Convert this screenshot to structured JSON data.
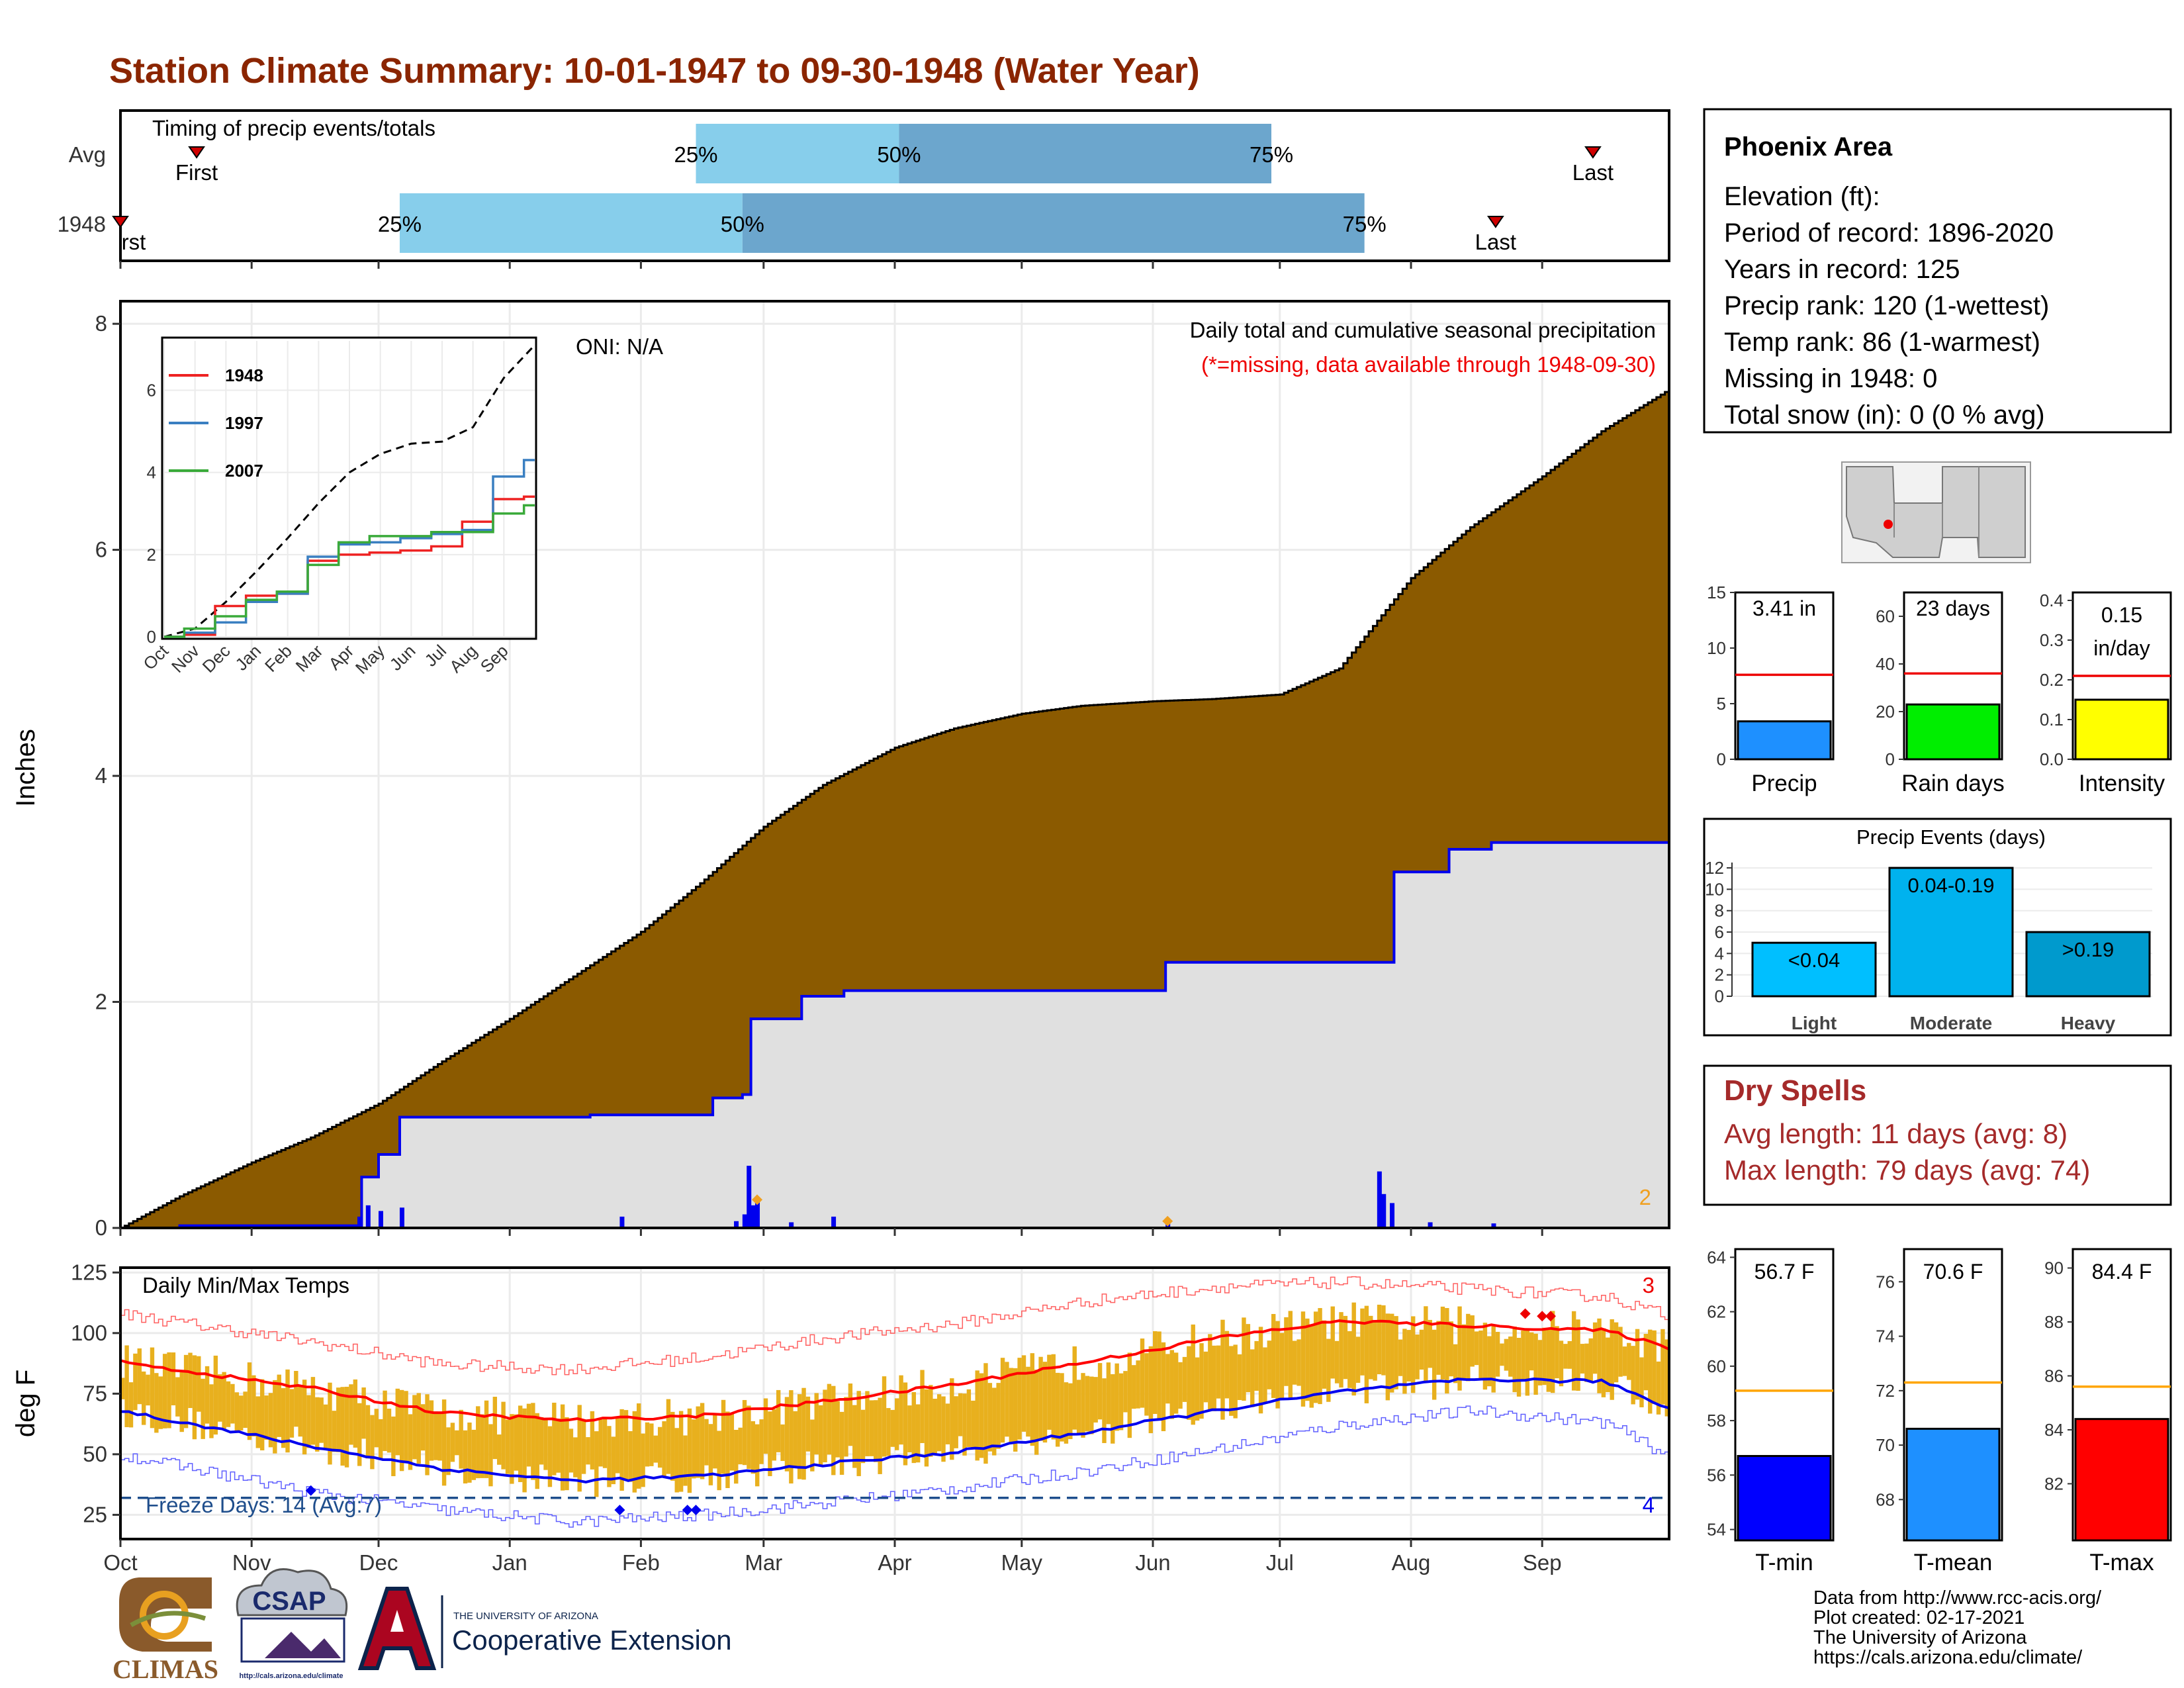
{
  "title": "Station Climate Summary: 10-01-1947 to 09-30-1948 (Water Year)",
  "colors": {
    "title": "#8b2500",
    "cum_fill": "#8b5a00",
    "avg_fill": "#e0e0e0",
    "blue_line": "#0000ee",
    "precip_bar": "#1e90ff",
    "rain_bar": "#00ee00",
    "intensity_bar": "#ffff00",
    "light_blue": "#87ceeb",
    "mid_blue": "#6ca6cd",
    "dry_spell": "#a52a2a",
    "temp_fill": "#e8b01e",
    "tmin": "#0000ff",
    "tmean": "#1e90ff",
    "tmax": "#ff0000"
  },
  "timing": {
    "heading": "Timing of precip events/totals",
    "rows": [
      "Avg",
      "1948"
    ],
    "first_label": "First",
    "first_label_cut": "rst",
    "last_label": "Last",
    "pct_labels": [
      "25%",
      "50%",
      "75%"
    ]
  },
  "precip_panel": {
    "y_title": "Inches",
    "y_ticks": [
      "0",
      "2",
      "4",
      "6",
      "8"
    ],
    "oni": "ONI: N/A",
    "subtitle": "Daily total and cumulative seasonal precipitation",
    "missing_note": "(*=missing, data available through 1948-09-30)",
    "extreme_count": "2"
  },
  "inset": {
    "y_ticks": [
      "0",
      "2",
      "4",
      "6"
    ],
    "x_ticks": [
      "Oct",
      "Nov",
      "Dec",
      "Jan",
      "Feb",
      "Mar",
      "Apr",
      "May",
      "Jun",
      "Jul",
      "Aug",
      "Sep"
    ],
    "legend": [
      {
        "label": "1948",
        "color": "#ee2222"
      },
      {
        "label": "1997",
        "color": "#3a7fc1"
      },
      {
        "label": "2007",
        "color": "#3aaa3a"
      }
    ]
  },
  "temp_panel": {
    "y_title": "deg F",
    "y_ticks": [
      "25",
      "50",
      "75",
      "100",
      "125"
    ],
    "label": "Daily Min/Max Temps",
    "freeze": "Freeze Days: 14 (Avg:7)",
    "max_count": "3",
    "min_count": "4"
  },
  "months": [
    "Oct",
    "Nov",
    "Dec",
    "Jan",
    "Feb",
    "Mar",
    "Apr",
    "May",
    "Jun",
    "Jul",
    "Aug",
    "Sep"
  ],
  "info_box": {
    "name": "Phoenix Area",
    "lines": [
      "Elevation (ft):",
      "Period of record: 1896-2020",
      "Years in record: 125",
      "Precip rank: 120 (1-wettest)",
      "Temp rank: 86 (1-warmest)",
      "Missing in 1948: 0",
      "Total snow (in): 0 (0 % avg)"
    ]
  },
  "mini_bars": [
    {
      "value_label": "3.41 in",
      "label": "Precip",
      "value": 3.41,
      "avg": 7.6,
      "ymax": 15,
      "ticks": [
        "0",
        "5",
        "10",
        "15"
      ],
      "color": "#1e90ff"
    },
    {
      "value_label": "23 days",
      "label": "Rain days",
      "value": 23,
      "avg": 36,
      "ymax": 70,
      "ticks": [
        "0",
        "20",
        "40",
        "60"
      ],
      "color": "#00ee00"
    },
    {
      "value_label_1": "0.15",
      "value_label_2": "in/day",
      "label": "Intensity",
      "value": 0.15,
      "avg": 0.21,
      "ymax": 0.42,
      "ticks": [
        "0.0",
        "0.1",
        "0.2",
        "0.3",
        "0.4"
      ],
      "color": "#ffff00"
    }
  ],
  "events": {
    "title": "Precip Events (days)",
    "ticks": [
      "0",
      "2",
      "4",
      "6",
      "8",
      "10",
      "12"
    ],
    "bars": [
      {
        "cat": "Light",
        "range": "<0.04",
        "value": 5,
        "color": "#00bfff"
      },
      {
        "cat": "Moderate",
        "range": "0.04-0.19",
        "value": 12,
        "color": "#00b2ee"
      },
      {
        "cat": "Heavy",
        "range": ">0.19",
        "value": 6,
        "color": "#009acd"
      }
    ]
  },
  "dry_spells": {
    "title": "Dry Spells",
    "avg": "Avg length: 11 days (avg: 8)",
    "max": "Max length: 79 days (avg: 74)"
  },
  "temp_bars": [
    {
      "value_label": "56.7 F",
      "label": "T-min",
      "value": 56.7,
      "avg": 59.1,
      "ymin": 53.6,
      "ymax": 64.3,
      "ticks": [
        "54",
        "56",
        "58",
        "60",
        "62",
        "64"
      ],
      "color": "#0000ff"
    },
    {
      "value_label": "70.6 F",
      "label": "T-mean",
      "value": 70.6,
      "avg": 72.3,
      "ymin": 66.5,
      "ymax": 77.2,
      "ticks": [
        "68",
        "70",
        "72",
        "74",
        "76"
      ],
      "color": "#1e90ff"
    },
    {
      "value_label": "84.4 F",
      "label": "T-max",
      "value": 84.4,
      "avg": 85.6,
      "ymin": 79.9,
      "ymax": 90.7,
      "ticks": [
        "82",
        "84",
        "86",
        "88",
        "90"
      ],
      "color": "#ff0000"
    }
  ],
  "credits": [
    "Data from http://www.rcc-acis.org/",
    "Plot created: 02-17-2021",
    "The University of Arizona",
    "https://cals.arizona.edu/climate/"
  ],
  "logos": {
    "climas": "CLIMAS",
    "csap": "CSAP",
    "csap_url": "http://cals.arizona.edu/climate",
    "ua_small": "THE UNIVERSITY OF ARIZONA",
    "coop": "Cooperative Extension"
  },
  "chart_data": [
    {
      "type": "area",
      "title": "Daily total and cumulative seasonal precipitation",
      "ylabel": "Inches",
      "ylim": [
        0,
        8.2
      ],
      "x_months": [
        "Oct",
        "Nov",
        "Dec",
        "Jan",
        "Feb",
        "Mar",
        "Apr",
        "May",
        "Jun",
        "Jul",
        "Aug",
        "Sep"
      ],
      "series": [
        {
          "name": "avg cumulative",
          "x": [
            "10-01",
            "10-15",
            "11-01",
            "11-15",
            "12-01",
            "12-15",
            "01-01",
            "01-15",
            "02-01",
            "02-15",
            "03-01",
            "03-15",
            "04-01",
            "04-15",
            "05-01",
            "05-15",
            "06-01",
            "06-15",
            "07-01",
            "07-15",
            "08-01",
            "08-15",
            "09-01",
            "09-15",
            "09-30"
          ],
          "values": [
            0,
            0.28,
            0.58,
            0.8,
            1.1,
            1.45,
            1.85,
            2.2,
            2.62,
            3.05,
            3.55,
            3.92,
            4.25,
            4.42,
            4.55,
            4.62,
            4.66,
            4.68,
            4.72,
            4.95,
            5.75,
            6.2,
            6.65,
            7.05,
            7.42
          ]
        },
        {
          "name": "1948 cumulative",
          "x": [
            "10-01",
            "10-15",
            "11-15",
            "11-27",
            "12-01",
            "12-06",
            "01-20",
            "02-18",
            "02-25",
            "02-27",
            "03-10",
            "03-20",
            "06-04",
            "07-25",
            "07-28",
            "08-10",
            "08-20",
            "09-30"
          ],
          "values": [
            0,
            0.02,
            0.02,
            0.45,
            0.65,
            0.98,
            1.0,
            1.15,
            1.18,
            1.85,
            2.05,
            2.1,
            2.35,
            2.35,
            3.15,
            3.35,
            3.41,
            3.41
          ]
        },
        {
          "name": "1948 daily",
          "x": [
            "10-15",
            "11-26",
            "11-28",
            "12-01",
            "12-06",
            "01-27",
            "02-23",
            "02-25",
            "02-26",
            "02-27",
            "02-28",
            "03-07",
            "03-17",
            "06-04",
            "07-24",
            "07-25",
            "07-27",
            "08-05",
            "08-20"
          ],
          "values": [
            0.02,
            0.1,
            0.2,
            0.15,
            0.18,
            0.1,
            0.06,
            0.12,
            0.55,
            0.2,
            0.25,
            0.05,
            0.1,
            0.04,
            0.5,
            0.3,
            0.22,
            0.05,
            0.04
          ]
        }
      ]
    },
    {
      "type": "line",
      "title": "",
      "ylim": [
        0,
        7.2
      ],
      "x": [
        "Oct",
        "Nov",
        "Dec",
        "Jan",
        "Feb",
        "Mar",
        "Apr",
        "May",
        "Jun",
        "Jul",
        "Aug",
        "Sep",
        "Sep-end"
      ],
      "series": [
        {
          "name": "avg",
          "values": [
            0,
            0.2,
            0.85,
            1.6,
            2.4,
            3.25,
            4.0,
            4.45,
            4.7,
            4.75,
            5.1,
            6.3,
            7.1
          ]
        },
        {
          "name": "1948",
          "values": [
            0,
            0.05,
            0.75,
            1.0,
            1.05,
            1.85,
            2.0,
            2.05,
            2.1,
            2.2,
            2.8,
            3.35,
            3.41
          ]
        },
        {
          "name": "1997",
          "values": [
            0,
            0.1,
            0.35,
            0.85,
            1.05,
            1.95,
            2.25,
            2.3,
            2.4,
            2.5,
            2.6,
            3.9,
            4.3
          ]
        },
        {
          "name": "2007",
          "values": [
            0,
            0.2,
            0.5,
            0.9,
            1.1,
            1.75,
            2.3,
            2.45,
            2.45,
            2.55,
            2.55,
            3.0,
            3.2
          ]
        }
      ]
    },
    {
      "type": "line",
      "title": "Daily Min/Max Temps",
      "ylabel": "deg F",
      "ylim": [
        15,
        127
      ],
      "x": [
        "Oct",
        "Nov",
        "Dec",
        "Jan",
        "Feb",
        "Mar",
        "Apr",
        "May",
        "Jun",
        "Jul",
        "Aug",
        "Sep",
        "Sep-end"
      ],
      "series": [
        {
          "name": "avg max",
          "values": [
            88,
            77,
            67,
            64,
            66,
            72,
            79,
            88,
            98,
            105,
            103,
            101,
            94
          ]
        },
        {
          "name": "avg min",
          "values": [
            68,
            53,
            44,
            39,
            41,
            46,
            51,
            59,
            68,
            76,
            81,
            80,
            69
          ]
        },
        {
          "name": "record max",
          "values": [
            108,
            96,
            87,
            85,
            90,
            98,
            104,
            113,
            119,
            121,
            118,
            115,
            107
          ]
        },
        {
          "name": "record min",
          "values": [
            50,
            34,
            27,
            22,
            25,
            30,
            36,
            43,
            52,
            62,
            68,
            63,
            49
          ]
        },
        {
          "name": "freeze",
          "values": [
            32,
            32,
            32,
            32,
            32,
            32,
            32,
            32,
            32,
            32,
            32,
            32,
            32
          ]
        }
      ]
    },
    {
      "type": "bar",
      "title": "Precip Events (days)",
      "categories": [
        "Light",
        "Moderate",
        "Heavy"
      ],
      "values": [
        5,
        12,
        6
      ]
    }
  ]
}
